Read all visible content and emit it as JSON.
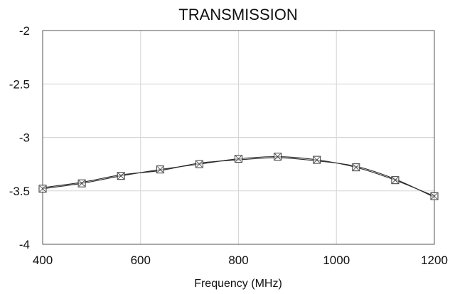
{
  "chart_data": {
    "type": "line",
    "title": "TRANSMISSION",
    "xlabel": "Frequency (MHz)",
    "ylabel": "",
    "xlim": [
      400,
      1200
    ],
    "ylim": [
      -4,
      -2
    ],
    "grid": true,
    "x_ticks": [
      "400",
      "600",
      "800",
      "1000",
      "1200"
    ],
    "y_ticks": [
      "-2",
      "-2.5",
      "-3",
      "-3.5",
      "-4"
    ],
    "series": [
      {
        "marker": "square-x",
        "x": [
          400,
          480,
          560,
          640,
          720,
          800,
          880,
          960,
          1040,
          1120,
          1200
        ],
        "y": [
          -3.48,
          -3.43,
          -3.36,
          -3.3,
          -3.25,
          -3.2,
          -3.18,
          -3.21,
          -3.28,
          -3.4,
          -3.55
        ]
      },
      {
        "marker": "none",
        "x": [
          400,
          480,
          560,
          640,
          720,
          800,
          880,
          960,
          1040,
          1120,
          1200
        ],
        "y": [
          -3.47,
          -3.42,
          -3.35,
          -3.31,
          -3.24,
          -3.21,
          -3.19,
          -3.22,
          -3.27,
          -3.39,
          -3.56
        ]
      }
    ],
    "colors": {
      "line": "#2b2b2b",
      "grid": "#d6d6d6",
      "frame": "#555555",
      "marker": "#333333"
    }
  }
}
